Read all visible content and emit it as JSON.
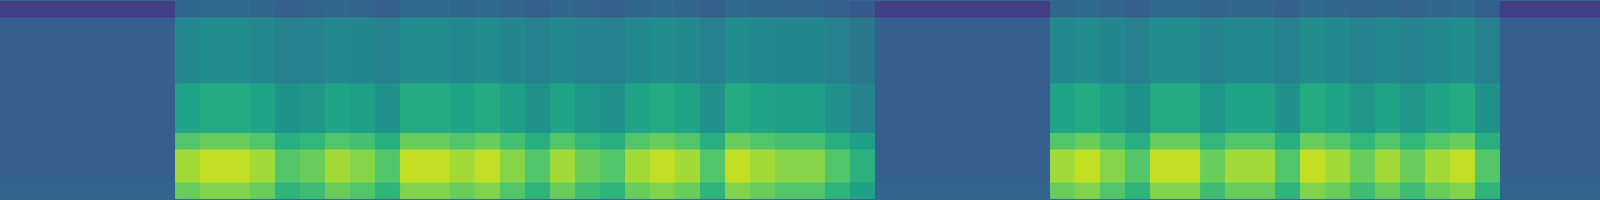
{
  "chart_data": {
    "type": "heatmap",
    "tick_labels": false,
    "color": "viridis",
    "color_range": [
      0,
      1
    ],
    "cells": [
      [
        0.18,
        0.18,
        0.18,
        0.18,
        0.18,
        0.18,
        0.18,
        0.33,
        0.34,
        0.34,
        0.33,
        0.3,
        0.31,
        0.33,
        0.32,
        0.3,
        0.34,
        0.34,
        0.33,
        0.34,
        0.32,
        0.3,
        0.33,
        0.31,
        0.3,
        0.33,
        0.34,
        0.33,
        0.3,
        0.34,
        0.33,
        0.32,
        0.32,
        0.3,
        0.28,
        0.18,
        0.18,
        0.18,
        0.18,
        0.18,
        0.18,
        0.18,
        0.33,
        0.34,
        0.32,
        0.3,
        0.34,
        0.34,
        0.31,
        0.33,
        0.33,
        0.3,
        0.34,
        0.33,
        0.31,
        0.33,
        0.31,
        0.33,
        0.34,
        0.3,
        0.18,
        0.18,
        0.18,
        0.18
      ],
      [
        0.3,
        0.3,
        0.3,
        0.3,
        0.3,
        0.3,
        0.3,
        0.47,
        0.49,
        0.49,
        0.47,
        0.43,
        0.44,
        0.47,
        0.46,
        0.43,
        0.49,
        0.49,
        0.47,
        0.49,
        0.46,
        0.43,
        0.47,
        0.44,
        0.43,
        0.47,
        0.49,
        0.47,
        0.43,
        0.49,
        0.47,
        0.46,
        0.46,
        0.43,
        0.4,
        0.3,
        0.3,
        0.3,
        0.3,
        0.3,
        0.3,
        0.3,
        0.47,
        0.49,
        0.46,
        0.43,
        0.49,
        0.49,
        0.44,
        0.47,
        0.47,
        0.43,
        0.49,
        0.47,
        0.44,
        0.47,
        0.44,
        0.47,
        0.49,
        0.43,
        0.3,
        0.3,
        0.3,
        0.3
      ],
      [
        0.3,
        0.3,
        0.3,
        0.3,
        0.3,
        0.3,
        0.3,
        0.47,
        0.49,
        0.49,
        0.47,
        0.43,
        0.44,
        0.47,
        0.46,
        0.43,
        0.49,
        0.49,
        0.47,
        0.49,
        0.46,
        0.43,
        0.47,
        0.44,
        0.43,
        0.47,
        0.49,
        0.47,
        0.43,
        0.49,
        0.47,
        0.46,
        0.46,
        0.43,
        0.4,
        0.3,
        0.3,
        0.3,
        0.3,
        0.3,
        0.3,
        0.3,
        0.47,
        0.49,
        0.46,
        0.43,
        0.49,
        0.49,
        0.44,
        0.47,
        0.47,
        0.43,
        0.49,
        0.47,
        0.44,
        0.47,
        0.44,
        0.47,
        0.49,
        0.43,
        0.3,
        0.3,
        0.3,
        0.3
      ],
      [
        0.3,
        0.3,
        0.3,
        0.3,
        0.3,
        0.3,
        0.3,
        0.47,
        0.49,
        0.49,
        0.47,
        0.43,
        0.44,
        0.47,
        0.46,
        0.43,
        0.49,
        0.49,
        0.47,
        0.49,
        0.46,
        0.43,
        0.47,
        0.44,
        0.43,
        0.47,
        0.49,
        0.47,
        0.43,
        0.49,
        0.47,
        0.46,
        0.46,
        0.43,
        0.4,
        0.3,
        0.3,
        0.3,
        0.3,
        0.3,
        0.3,
        0.3,
        0.47,
        0.49,
        0.46,
        0.43,
        0.49,
        0.49,
        0.44,
        0.47,
        0.47,
        0.43,
        0.49,
        0.47,
        0.44,
        0.47,
        0.44,
        0.47,
        0.49,
        0.43,
        0.3,
        0.3,
        0.3,
        0.3
      ],
      [
        0.3,
        0.3,
        0.3,
        0.3,
        0.3,
        0.3,
        0.3,
        0.47,
        0.49,
        0.49,
        0.47,
        0.43,
        0.44,
        0.47,
        0.46,
        0.43,
        0.49,
        0.49,
        0.47,
        0.49,
        0.46,
        0.43,
        0.47,
        0.44,
        0.43,
        0.47,
        0.49,
        0.47,
        0.43,
        0.49,
        0.47,
        0.46,
        0.46,
        0.43,
        0.4,
        0.3,
        0.3,
        0.3,
        0.3,
        0.3,
        0.3,
        0.3,
        0.47,
        0.49,
        0.46,
        0.43,
        0.49,
        0.49,
        0.44,
        0.47,
        0.47,
        0.43,
        0.49,
        0.47,
        0.44,
        0.47,
        0.44,
        0.47,
        0.49,
        0.43,
        0.3,
        0.3,
        0.3,
        0.3
      ],
      [
        0.3,
        0.3,
        0.3,
        0.3,
        0.3,
        0.3,
        0.3,
        0.58,
        0.61,
        0.61,
        0.58,
        0.51,
        0.53,
        0.58,
        0.56,
        0.51,
        0.61,
        0.61,
        0.58,
        0.61,
        0.56,
        0.51,
        0.58,
        0.53,
        0.51,
        0.58,
        0.61,
        0.58,
        0.51,
        0.61,
        0.58,
        0.56,
        0.56,
        0.51,
        0.45,
        0.3,
        0.3,
        0.3,
        0.3,
        0.3,
        0.3,
        0.3,
        0.58,
        0.61,
        0.56,
        0.51,
        0.61,
        0.61,
        0.53,
        0.58,
        0.58,
        0.51,
        0.61,
        0.58,
        0.53,
        0.58,
        0.53,
        0.58,
        0.61,
        0.51,
        0.3,
        0.3,
        0.3,
        0.3
      ],
      [
        0.3,
        0.3,
        0.3,
        0.3,
        0.3,
        0.3,
        0.3,
        0.58,
        0.61,
        0.61,
        0.58,
        0.51,
        0.53,
        0.58,
        0.56,
        0.51,
        0.61,
        0.61,
        0.58,
        0.61,
        0.56,
        0.51,
        0.58,
        0.53,
        0.51,
        0.58,
        0.61,
        0.58,
        0.51,
        0.61,
        0.58,
        0.56,
        0.56,
        0.51,
        0.45,
        0.3,
        0.3,
        0.3,
        0.3,
        0.3,
        0.3,
        0.3,
        0.58,
        0.61,
        0.56,
        0.51,
        0.61,
        0.61,
        0.53,
        0.58,
        0.58,
        0.51,
        0.61,
        0.58,
        0.53,
        0.58,
        0.53,
        0.58,
        0.61,
        0.51,
        0.3,
        0.3,
        0.3,
        0.3
      ],
      [
        0.3,
        0.3,
        0.3,
        0.3,
        0.3,
        0.3,
        0.3,
        0.58,
        0.61,
        0.61,
        0.58,
        0.51,
        0.53,
        0.58,
        0.56,
        0.51,
        0.61,
        0.61,
        0.58,
        0.61,
        0.56,
        0.51,
        0.58,
        0.53,
        0.51,
        0.58,
        0.61,
        0.58,
        0.51,
        0.61,
        0.58,
        0.56,
        0.56,
        0.51,
        0.45,
        0.3,
        0.3,
        0.3,
        0.3,
        0.3,
        0.3,
        0.3,
        0.58,
        0.61,
        0.56,
        0.51,
        0.61,
        0.61,
        0.53,
        0.58,
        0.58,
        0.51,
        0.61,
        0.58,
        0.53,
        0.58,
        0.53,
        0.58,
        0.61,
        0.51,
        0.3,
        0.3,
        0.3,
        0.3
      ],
      [
        0.3,
        0.3,
        0.3,
        0.3,
        0.3,
        0.3,
        0.3,
        0.73,
        0.77,
        0.77,
        0.73,
        0.63,
        0.66,
        0.73,
        0.7,
        0.63,
        0.77,
        0.77,
        0.73,
        0.77,
        0.7,
        0.63,
        0.73,
        0.66,
        0.63,
        0.73,
        0.77,
        0.73,
        0.63,
        0.77,
        0.73,
        0.7,
        0.7,
        0.63,
        0.56,
        0.3,
        0.3,
        0.3,
        0.3,
        0.3,
        0.3,
        0.3,
        0.73,
        0.77,
        0.7,
        0.63,
        0.77,
        0.77,
        0.66,
        0.73,
        0.73,
        0.63,
        0.77,
        0.73,
        0.66,
        0.73,
        0.66,
        0.73,
        0.77,
        0.63,
        0.3,
        0.3,
        0.3,
        0.3
      ],
      [
        0.3,
        0.3,
        0.3,
        0.3,
        0.3,
        0.3,
        0.3,
        0.86,
        0.91,
        0.91,
        0.86,
        0.73,
        0.77,
        0.86,
        0.82,
        0.73,
        0.91,
        0.91,
        0.86,
        0.91,
        0.82,
        0.73,
        0.86,
        0.77,
        0.73,
        0.86,
        0.91,
        0.86,
        0.73,
        0.91,
        0.86,
        0.82,
        0.82,
        0.73,
        0.64,
        0.3,
        0.3,
        0.3,
        0.3,
        0.3,
        0.3,
        0.3,
        0.86,
        0.91,
        0.82,
        0.73,
        0.91,
        0.91,
        0.77,
        0.86,
        0.86,
        0.73,
        0.91,
        0.86,
        0.77,
        0.86,
        0.77,
        0.86,
        0.91,
        0.73,
        0.3,
        0.3,
        0.3,
        0.3
      ],
      [
        0.3,
        0.3,
        0.3,
        0.3,
        0.3,
        0.3,
        0.3,
        0.86,
        0.91,
        0.91,
        0.86,
        0.73,
        0.77,
        0.86,
        0.82,
        0.73,
        0.91,
        0.91,
        0.86,
        0.91,
        0.82,
        0.73,
        0.86,
        0.77,
        0.73,
        0.86,
        0.91,
        0.86,
        0.73,
        0.91,
        0.86,
        0.82,
        0.82,
        0.73,
        0.64,
        0.3,
        0.3,
        0.3,
        0.3,
        0.3,
        0.3,
        0.3,
        0.86,
        0.91,
        0.82,
        0.73,
        0.91,
        0.91,
        0.77,
        0.86,
        0.86,
        0.73,
        0.91,
        0.86,
        0.77,
        0.86,
        0.77,
        0.86,
        0.91,
        0.73,
        0.3,
        0.3,
        0.3,
        0.3
      ],
      [
        0.32,
        0.32,
        0.32,
        0.32,
        0.32,
        0.32,
        0.32,
        0.77,
        0.81,
        0.81,
        0.77,
        0.65,
        0.69,
        0.77,
        0.73,
        0.65,
        0.81,
        0.81,
        0.77,
        0.81,
        0.73,
        0.65,
        0.77,
        0.69,
        0.65,
        0.77,
        0.81,
        0.77,
        0.65,
        0.81,
        0.77,
        0.73,
        0.73,
        0.65,
        0.57,
        0.32,
        0.32,
        0.32,
        0.32,
        0.32,
        0.32,
        0.32,
        0.77,
        0.81,
        0.73,
        0.65,
        0.81,
        0.81,
        0.69,
        0.77,
        0.77,
        0.65,
        0.81,
        0.77,
        0.69,
        0.77,
        0.69,
        0.77,
        0.81,
        0.65,
        0.32,
        0.32,
        0.32,
        0.32
      ]
    ]
  }
}
